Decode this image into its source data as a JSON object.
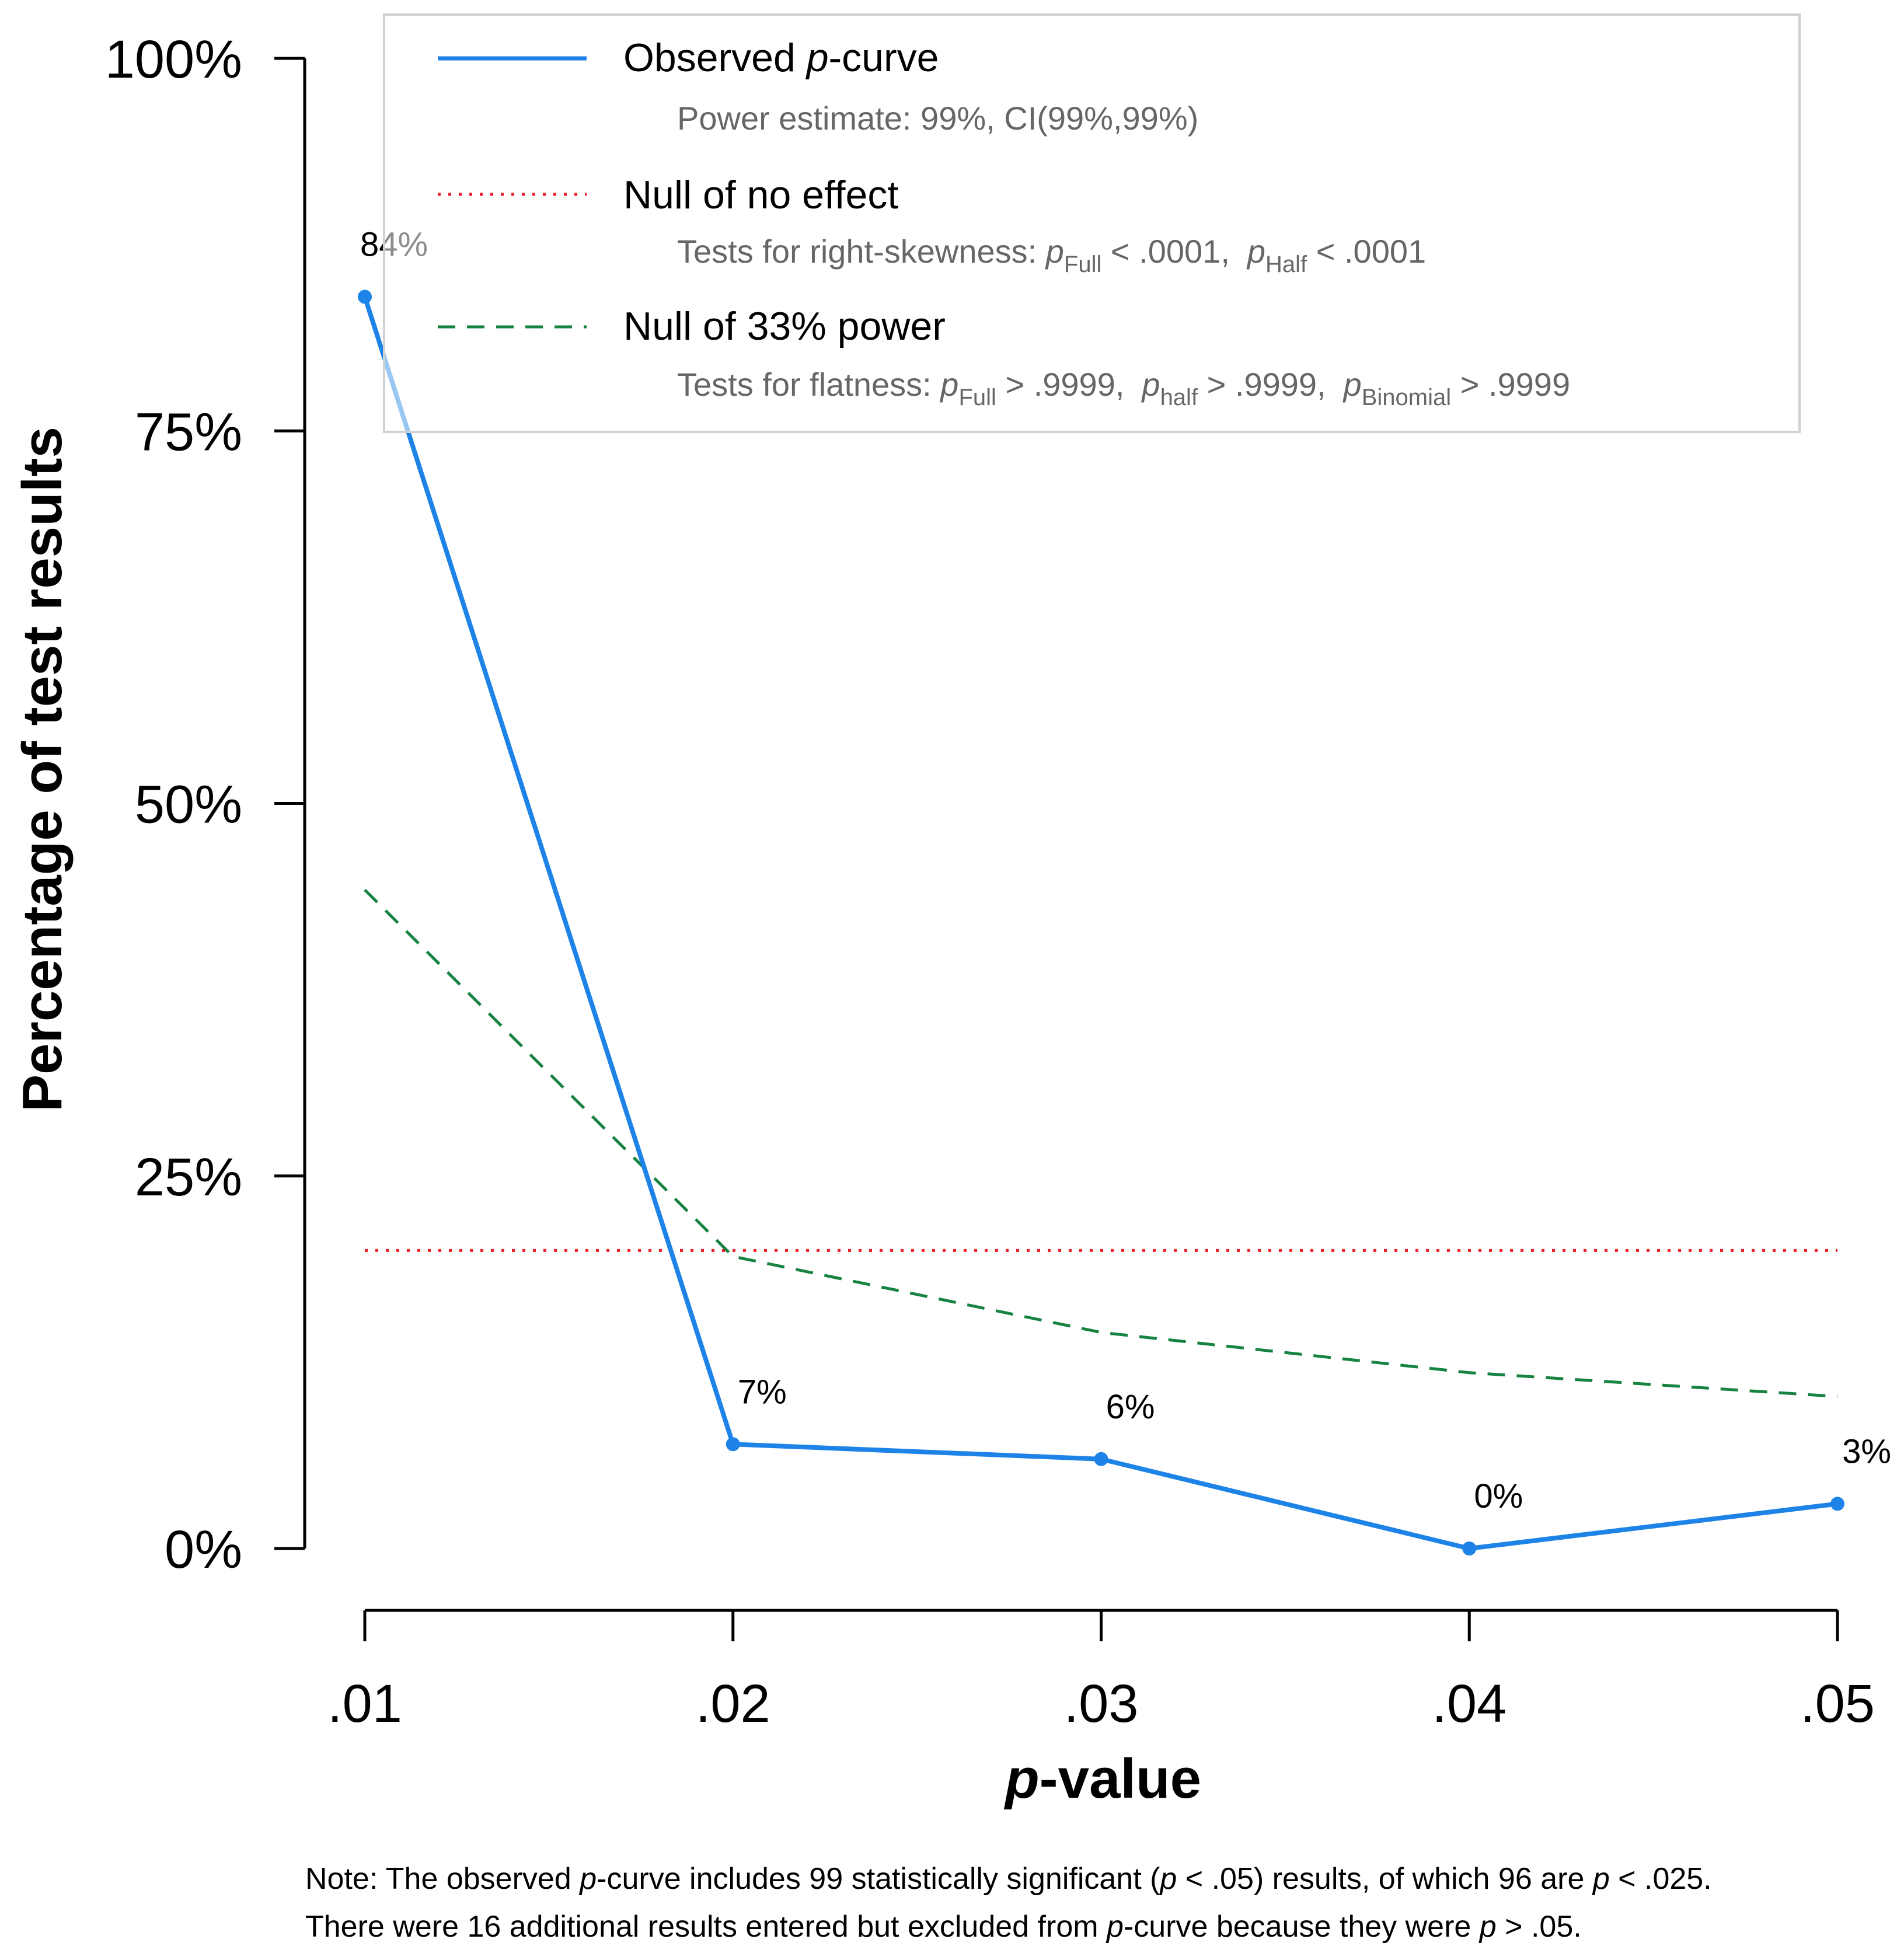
{
  "chart_data": {
    "type": "line",
    "x": [
      ".01",
      ".02",
      ".03",
      ".04",
      ".05"
    ],
    "ylim": [
      0,
      100
    ],
    "yticks": [
      "0%",
      "25%",
      "50%",
      "75%",
      "100%"
    ],
    "xlabel_prefix": "p",
    "xlabel_rest": "-value",
    "ylabel": "Percentage of test results",
    "legend_position": "top",
    "series": [
      {
        "key": "observed",
        "name_prefix": "Observed ",
        "name_italic": "p",
        "name_rest": "-curve",
        "values": [
          84,
          7,
          6,
          0,
          3
        ],
        "labels": [
          "84%",
          "7%",
          "6%",
          "0%",
          "3%"
        ],
        "color": "#1e83e6",
        "style": "solid"
      },
      {
        "key": "null_no_effect",
        "name": "Null of no effect",
        "values": [
          20,
          20,
          20,
          20,
          20
        ],
        "color": "#ee1c24",
        "style": "dotted"
      },
      {
        "key": "null_33",
        "name": "Null of 33% power",
        "values": [
          44.2,
          19.6,
          14.5,
          11.8,
          10.2
        ],
        "color": "#168340",
        "style": "dashed"
      }
    ]
  },
  "legend": {
    "observed_sub": "Power estimate: 99%, CI(99%,99%)",
    "noeffect_sub": {
      "lead": "Tests for right-skewness: ",
      "p1_sub": "Full",
      "p1_val": " < .0001,",
      "p2_sub": "Half",
      "p2_val": " < .0001"
    },
    "flat_sub": {
      "lead": "Tests for flatness: ",
      "p1_sub": "Full",
      "p1_val": " > .9999,",
      "p2_sub": "half",
      "p2_val": " > .9999,",
      "p3_sub": "Binomial",
      "p3_val": " > .9999"
    },
    "p_letter": "p"
  },
  "note": {
    "line1": {
      "a": "Note: The observed ",
      "p1": "p",
      "b": "-curve includes 99 statistically significant (",
      "p2": "p",
      "c": " < .05) results, of which 96 are ",
      "p3": "p",
      "d": " < .025."
    },
    "line2": {
      "a": "There were 16 additional results entered but excluded from ",
      "p1": "p",
      "b": "-curve because they were ",
      "p2": "p",
      "c": " > .05."
    }
  }
}
